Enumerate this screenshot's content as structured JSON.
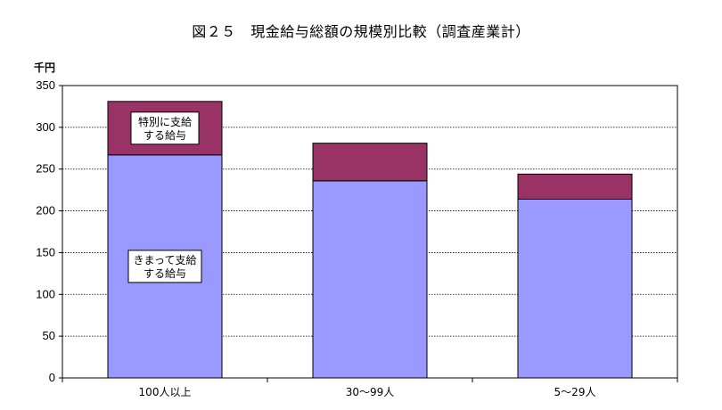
{
  "title": "図２５　現金給与総額の規模別比較（調査産業計）",
  "chart_data": {
    "type": "bar",
    "stacked": true,
    "categories": [
      "100人以上",
      "30～99人",
      "5～29人"
    ],
    "series": [
      {
        "name": "きまって支給する給与",
        "values": [
          267,
          236,
          214
        ],
        "color": "#9999ff"
      },
      {
        "name": "特別に支給する給与",
        "values": [
          64,
          45,
          30
        ],
        "color": "#993366"
      }
    ],
    "ylabel": "千円",
    "ylim": [
      0,
      350
    ],
    "yticks": [
      0,
      50,
      100,
      150,
      200,
      250,
      300,
      350
    ],
    "grid": true,
    "annotations": [
      {
        "lines": [
          "特別に支給",
          "する給与"
        ],
        "series": 1,
        "category": 0
      },
      {
        "lines": [
          "きまって支給",
          "する給与"
        ],
        "series": 0,
        "category": 0
      }
    ]
  }
}
